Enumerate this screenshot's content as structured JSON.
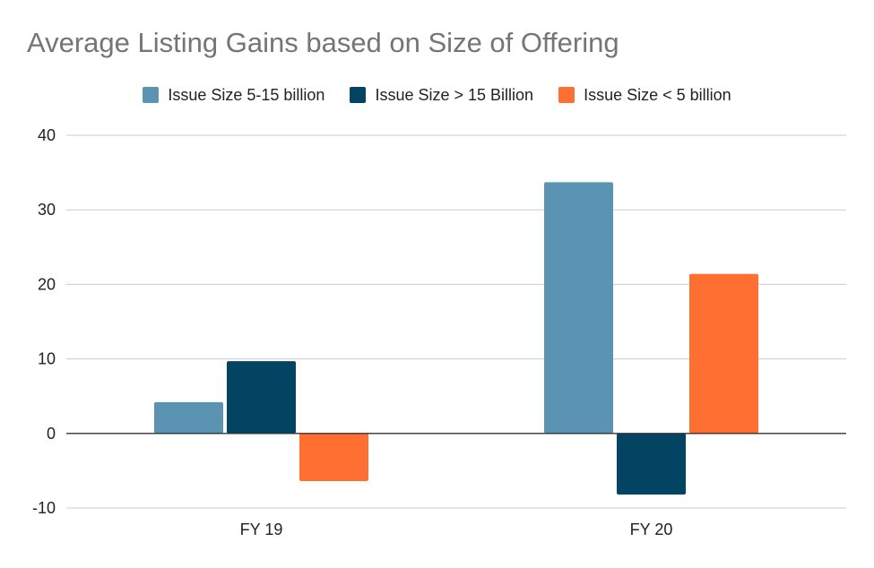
{
  "chart_data": {
    "type": "bar",
    "title": "Average Listing Gains based on Size of Offering",
    "xlabel": "",
    "ylabel": "",
    "categories": [
      "FY 19",
      "FY 20"
    ],
    "series": [
      {
        "name": "Issue Size 5-15 billion",
        "color": "#5B93B3",
        "values": [
          4.2,
          33.7
        ]
      },
      {
        "name": "Issue Size > 15 Billion",
        "color": "#034462",
        "values": [
          9.7,
          -8.2
        ]
      },
      {
        "name": "Issue Size < 5 billion",
        "color": "#FF6F31",
        "values": [
          -6.4,
          21.4
        ]
      }
    ],
    "ylim": [
      -10,
      40
    ],
    "yticks": [
      "40",
      "30",
      "20",
      "10",
      "0",
      "-10"
    ],
    "ytick_values": [
      40,
      30,
      20,
      10,
      0,
      -10
    ],
    "grid": true,
    "legend_position": "top"
  }
}
